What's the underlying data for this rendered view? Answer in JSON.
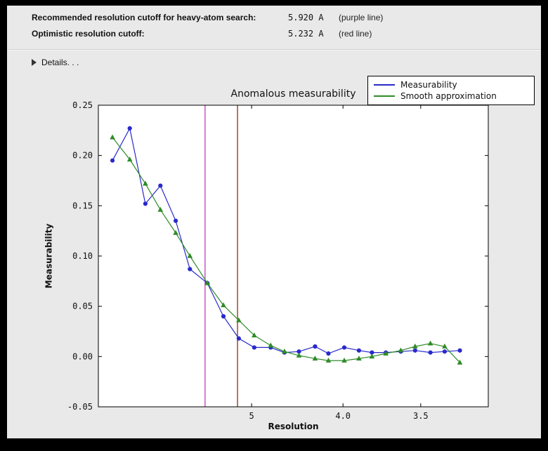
{
  "header": {
    "rows": [
      {
        "label": "Recommended resolution cutoff for heavy-atom search:",
        "value": "5.920 A",
        "note": "(purple line)"
      },
      {
        "label": "Optimistic resolution cutoff:",
        "value": "5.232 A",
        "note": "(red line)"
      }
    ],
    "details_label": "Details. . ."
  },
  "chart_data": {
    "type": "line",
    "title": "Anomalous measurability",
    "xlabel": "Resolution",
    "ylabel": "Measurability",
    "x_axis_note": "resolution in Angstrom, decreasing left to right, 1/d^2 spacing",
    "xlim_resolution": [
      21.0,
      3.19
    ],
    "ylim": [
      -0.05,
      0.25
    ],
    "x_resolution": [
      13.2,
      10.0,
      8.5,
      7.55,
      6.85,
      6.35,
      5.86,
      5.5,
      5.21,
      4.96,
      4.73,
      4.56,
      4.4,
      4.24,
      4.12,
      3.99,
      3.88,
      3.79,
      3.7,
      3.61,
      3.53,
      3.45,
      3.38,
      3.31
    ],
    "series": [
      {
        "name": "Measurability",
        "color": "#2929cc",
        "marker": "circle",
        "values": [
          0.195,
          0.227,
          0.152,
          0.17,
          0.135,
          0.087,
          0.073,
          0.04,
          0.018,
          0.009,
          0.009,
          0.004,
          0.005,
          0.01,
          0.003,
          0.009,
          0.006,
          0.004,
          0.004,
          0.005,
          0.006,
          0.004,
          0.005,
          0.006
        ]
      },
      {
        "name": "Smooth approximation",
        "color": "#2f8b28",
        "marker": "triangle",
        "values": [
          0.218,
          0.196,
          0.172,
          0.146,
          0.123,
          0.1,
          0.073,
          0.051,
          0.036,
          0.021,
          0.011,
          0.005,
          0.001,
          -0.002,
          -0.004,
          -0.004,
          -0.002,
          0.0,
          0.003,
          0.006,
          0.01,
          0.013,
          0.01,
          -0.006
        ]
      }
    ],
    "vlines": [
      {
        "name": "purple-line",
        "resolution": 5.92,
        "color": "#c04ec0"
      },
      {
        "name": "red-line",
        "resolution": 5.232,
        "color": "#9e3a1e"
      }
    ],
    "yticks": [
      {
        "value": -0.05,
        "label": "-0.05"
      },
      {
        "value": 0.0,
        "label": "0.00"
      },
      {
        "value": 0.05,
        "label": "0.05"
      },
      {
        "value": 0.1,
        "label": "0.10"
      },
      {
        "value": 0.15,
        "label": "0.15"
      },
      {
        "value": 0.2,
        "label": "0.20"
      },
      {
        "value": 0.25,
        "label": "0.25"
      }
    ],
    "xticks": [
      {
        "d": 5.0,
        "label": "5"
      },
      {
        "d": 4.0,
        "label": "4.0"
      },
      {
        "d": 3.5,
        "label": "3.5"
      }
    ],
    "legend_position": "upper right",
    "grid": false
  }
}
